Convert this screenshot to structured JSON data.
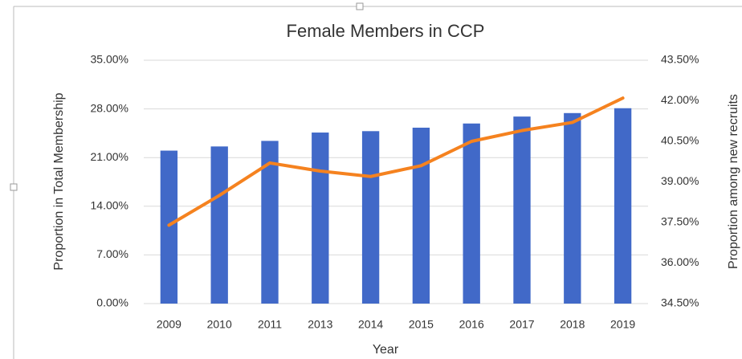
{
  "chart_data": {
    "type": "bar_line",
    "title": "Female Members in CCP",
    "xlabel": "Year",
    "ylabel": "Proportion in Total Membership",
    "y2label": "Proportion among new recruits",
    "categories": [
      "2009",
      "2010",
      "2011",
      "2013",
      "2014",
      "2015",
      "2016",
      "2017",
      "2018",
      "2019"
    ],
    "series": [
      {
        "type": "bar",
        "color": "#4169c8",
        "values": [
          22.0,
          22.6,
          23.4,
          24.6,
          24.8,
          25.3,
          25.9,
          26.9,
          27.4,
          28.1
        ]
      },
      {
        "type": "line",
        "axis": "y2",
        "color": "#f5821f",
        "values": [
          37.4,
          38.5,
          39.7,
          39.4,
          39.2,
          39.6,
          40.5,
          40.9,
          41.2,
          42.1
        ]
      }
    ],
    "ylim": [
      0,
      35
    ],
    "yticks": [
      {
        "value": 0,
        "label": "0.00%"
      },
      {
        "value": 7,
        "label": "7.00%"
      },
      {
        "value": 14,
        "label": "14.00%"
      },
      {
        "value": 21,
        "label": "21.00%"
      },
      {
        "value": 28,
        "label": "28.00%"
      },
      {
        "value": 35,
        "label": "35.00%"
      }
    ],
    "y2lim": [
      34.5,
      43.5
    ],
    "y2ticks": [
      {
        "value": 34.5,
        "label": "34.50%"
      },
      {
        "value": 36,
        "label": "36.00%"
      },
      {
        "value": 37.5,
        "label": "37.50%"
      },
      {
        "value": 39,
        "label": "39.00%"
      },
      {
        "value": 40.5,
        "label": "40.50%"
      },
      {
        "value": 42,
        "label": "42.00%"
      },
      {
        "value": 43.5,
        "label": "43.50%"
      }
    ],
    "grid": true
  }
}
